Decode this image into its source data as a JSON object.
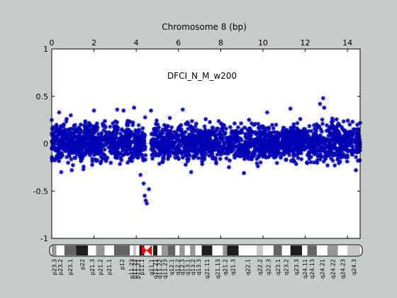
{
  "chart_data": {
    "type": "scatter",
    "title": "Chromosome 8 (bp)",
    "annotation": "DFCI_N_M_w200",
    "xlim": [
      0,
      14.6
    ],
    "ylim": [
      -1,
      1
    ],
    "x_ticks": [
      0,
      2,
      4,
      6,
      8,
      10,
      12,
      14
    ],
    "y_ticks": [
      1,
      0.5,
      0,
      -0.5,
      -1
    ],
    "x_tick_labels": [
      "0",
      "2",
      "4",
      "6",
      "8",
      "10",
      "12",
      "14"
    ],
    "y_tick_labels": [
      "1",
      "0.5",
      "0",
      "-0.5",
      "-1"
    ],
    "x_axis_position": "top",
    "grid": false,
    "reference_line": {
      "y": 0,
      "color": "#9fa8c8"
    },
    "series": [
      {
        "color": "#0000b4",
        "marker": "asterisk",
        "description_points": [
          {
            "x": 0.0,
            "y": 0.25
          },
          {
            "x": 0.35,
            "y": 0.33
          },
          {
            "x": 0.45,
            "y": -0.3
          },
          {
            "x": 0.9,
            "y": 0.3
          },
          {
            "x": 0.95,
            "y": -0.28
          },
          {
            "x": 1.5,
            "y": -0.27
          },
          {
            "x": 2.0,
            "y": 0.35
          },
          {
            "x": 3.1,
            "y": 0.36
          },
          {
            "x": 3.4,
            "y": 0.35
          },
          {
            "x": 3.9,
            "y": 0.38
          },
          {
            "x": 4.2,
            "y": -0.33
          },
          {
            "x": 4.35,
            "y": -0.42
          },
          {
            "x": 4.4,
            "y": -0.55
          },
          {
            "x": 4.45,
            "y": -0.6
          },
          {
            "x": 4.5,
            "y": -0.63
          },
          {
            "x": 4.6,
            "y": -0.48
          },
          {
            "x": 4.7,
            "y": 0.35
          },
          {
            "x": 6.2,
            "y": 0.36
          },
          {
            "x": 6.6,
            "y": -0.3
          },
          {
            "x": 9.1,
            "y": -0.31
          },
          {
            "x": 10.2,
            "y": 0.33
          },
          {
            "x": 11.3,
            "y": 0.37
          },
          {
            "x": 12.7,
            "y": 0.42
          },
          {
            "x": 12.85,
            "y": 0.48
          },
          {
            "x": 12.9,
            "y": 0.38
          },
          {
            "x": 14.4,
            "y": -0.28
          },
          {
            "x": 14.6,
            "y": 0.22
          }
        ],
        "bulk": {
          "x_range": [
            0,
            14.6
          ],
          "y_range": [
            -0.27,
            0.3
          ],
          "gap_x": [
            4.45,
            4.7
          ]
        }
      }
    ],
    "ideogram": {
      "centromere_x": 4.5,
      "bands": [
        {
          "label": "p23.3",
          "start": 0.0,
          "end": 0.22,
          "stain": "gpos50"
        },
        {
          "label": "p23.2",
          "start": 0.22,
          "end": 0.6,
          "stain": "gneg"
        },
        {
          "label": "p23.1",
          "start": 0.6,
          "end": 1.15,
          "stain": "gpos75"
        },
        {
          "label": "p22",
          "start": 1.15,
          "end": 1.72,
          "stain": "gpos100"
        },
        {
          "label": "p21.3",
          "start": 1.72,
          "end": 2.1,
          "stain": "gneg"
        },
        {
          "label": "p21.2",
          "start": 2.1,
          "end": 2.5,
          "stain": "gpos50"
        },
        {
          "label": "p21.1",
          "start": 2.5,
          "end": 2.95,
          "stain": "gneg"
        },
        {
          "label": "p12",
          "start": 2.95,
          "end": 3.7,
          "stain": "gpos75"
        },
        {
          "label": "p11.23",
          "start": 3.7,
          "end": 3.85,
          "stain": "gneg"
        },
        {
          "label": "p11.22",
          "start": 3.85,
          "end": 4.0,
          "stain": "gpos25"
        },
        {
          "label": "p11.21",
          "start": 4.0,
          "end": 4.15,
          "stain": "gneg"
        },
        {
          "label": "p11.1",
          "start": 4.15,
          "end": 4.38,
          "stain": "gpos100"
        },
        {
          "label": "q11.1",
          "start": 4.62,
          "end": 4.8,
          "stain": "gneg"
        },
        {
          "label": "q11.21",
          "start": 4.8,
          "end": 5.0,
          "stain": "gpos100"
        },
        {
          "label": "q11.22",
          "start": 5.0,
          "end": 5.2,
          "stain": "gneg"
        },
        {
          "label": "q11.23",
          "start": 5.2,
          "end": 5.5,
          "stain": "gpos50"
        },
        {
          "label": "q12.1",
          "start": 5.5,
          "end": 5.85,
          "stain": "gpos75"
        },
        {
          "label": "q12.2",
          "start": 5.85,
          "end": 6.05,
          "stain": "gneg"
        },
        {
          "label": "q12.3",
          "start": 6.05,
          "end": 6.3,
          "stain": "gpos50"
        },
        {
          "label": "q13.1",
          "start": 6.3,
          "end": 6.55,
          "stain": "gneg"
        },
        {
          "label": "q13.2",
          "start": 6.55,
          "end": 6.8,
          "stain": "gpos50"
        },
        {
          "label": "q13.3",
          "start": 6.8,
          "end": 7.1,
          "stain": "gneg"
        },
        {
          "label": "q21.11",
          "start": 7.1,
          "end": 7.6,
          "stain": "gpos100"
        },
        {
          "label": "q21.13",
          "start": 7.6,
          "end": 8.1,
          "stain": "gneg"
        },
        {
          "label": "q21.2",
          "start": 8.1,
          "end": 8.3,
          "stain": "gpos50"
        },
        {
          "label": "q21.3",
          "start": 8.3,
          "end": 8.85,
          "stain": "gpos100"
        },
        {
          "label": "q22.1",
          "start": 8.85,
          "end": 9.7,
          "stain": "gneg"
        },
        {
          "label": "q22.2",
          "start": 9.7,
          "end": 10.0,
          "stain": "gpos25"
        },
        {
          "label": "q22.3",
          "start": 10.0,
          "end": 10.5,
          "stain": "gneg"
        },
        {
          "label": "q23.1",
          "start": 10.5,
          "end": 10.9,
          "stain": "gpos75"
        },
        {
          "label": "q23.2",
          "start": 10.9,
          "end": 11.3,
          "stain": "gneg"
        },
        {
          "label": "q23.3",
          "start": 11.3,
          "end": 11.85,
          "stain": "gpos100"
        },
        {
          "label": "q24.11",
          "start": 11.85,
          "end": 12.1,
          "stain": "gneg"
        },
        {
          "label": "q24.13",
          "start": 12.1,
          "end": 12.55,
          "stain": "gpos75"
        },
        {
          "label": "q24.21",
          "start": 12.55,
          "end": 13.05,
          "stain": "gneg"
        },
        {
          "label": "q24.22",
          "start": 13.05,
          "end": 13.55,
          "stain": "gpos50"
        },
        {
          "label": "q24.23",
          "start": 13.55,
          "end": 14.0,
          "stain": "gneg"
        },
        {
          "label": "q24.3",
          "start": 14.0,
          "end": 14.6,
          "stain": "gpos25"
        }
      ]
    }
  }
}
